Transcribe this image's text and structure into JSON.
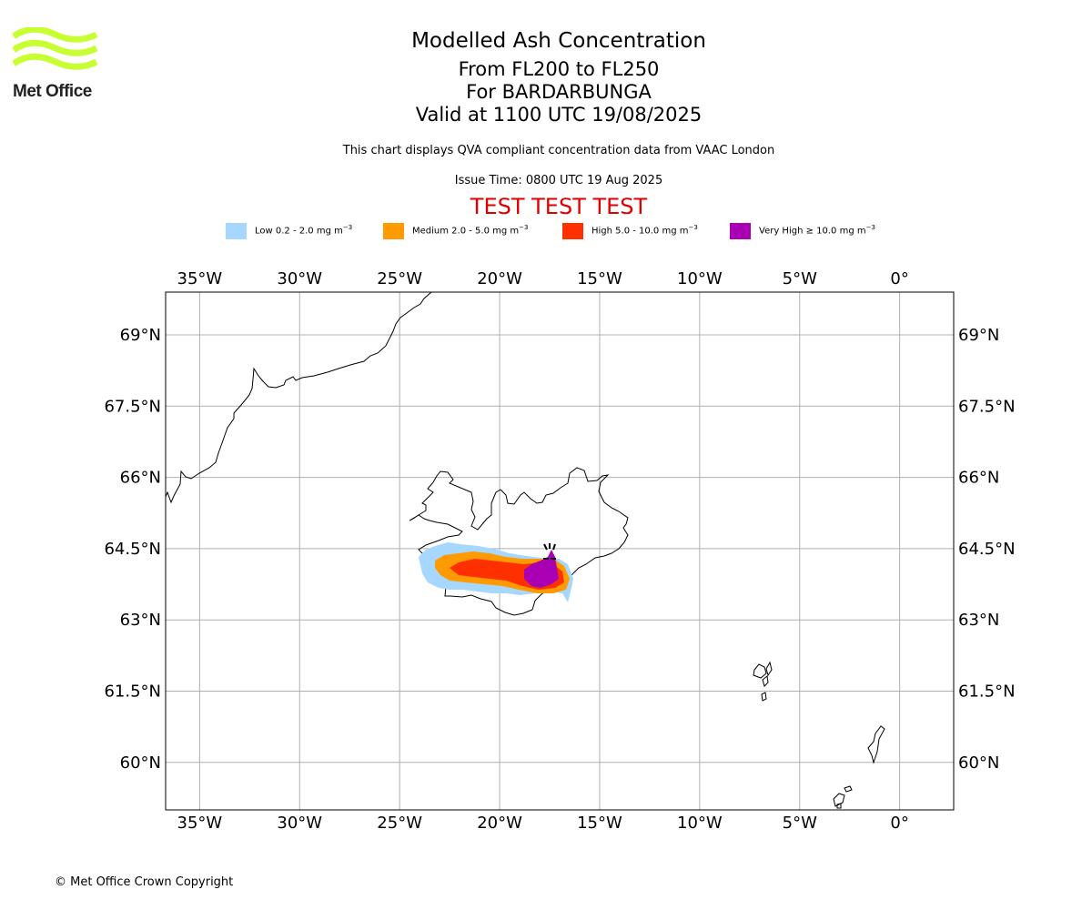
{
  "logo": {
    "name": "Met Office"
  },
  "header": {
    "title": "Modelled Ash Concentration",
    "level": "From FL200 to FL250",
    "volcano": "For BARDARBUNGA",
    "valid": "Valid at 1100 UTC 19/08/2025"
  },
  "note": "This chart displays QVA compliant concentration data from VAAC London",
  "issue_time": "Issue Time: 0800 UTC 19 Aug 2025",
  "test_banner": "TEST TEST TEST",
  "legend": [
    {
      "label": "Low 0.2 - 2.0 mg m",
      "color": "#a6d8ff"
    },
    {
      "label": "Medium 2.0 - 5.0 mg m",
      "color": "#ff9a00"
    },
    {
      "label": "High 5.0 - 10.0 mg m",
      "color": "#ff3000"
    },
    {
      "label": "Very High ≥ 10.0 mg m",
      "color": "#aa00b4"
    }
  ],
  "legend_unit_exp": "−3",
  "map": {
    "lon_range": [
      -36.7,
      2.7
    ],
    "lat_range": [
      59.0,
      69.9
    ],
    "lon_ticks": [
      "35°W",
      "30°W",
      "25°W",
      "20°W",
      "15°W",
      "10°W",
      "5°W",
      "0°"
    ],
    "lat_ticks": [
      "69°N",
      "67.5°N",
      "66°N",
      "64.5°N",
      "63°N",
      "61.5°N",
      "60°N"
    ],
    "gridlines": true,
    "volcano_marker": {
      "lon": -17.5,
      "lat": 64.6
    }
  },
  "copyright": "© Met Office Crown Copyright"
}
